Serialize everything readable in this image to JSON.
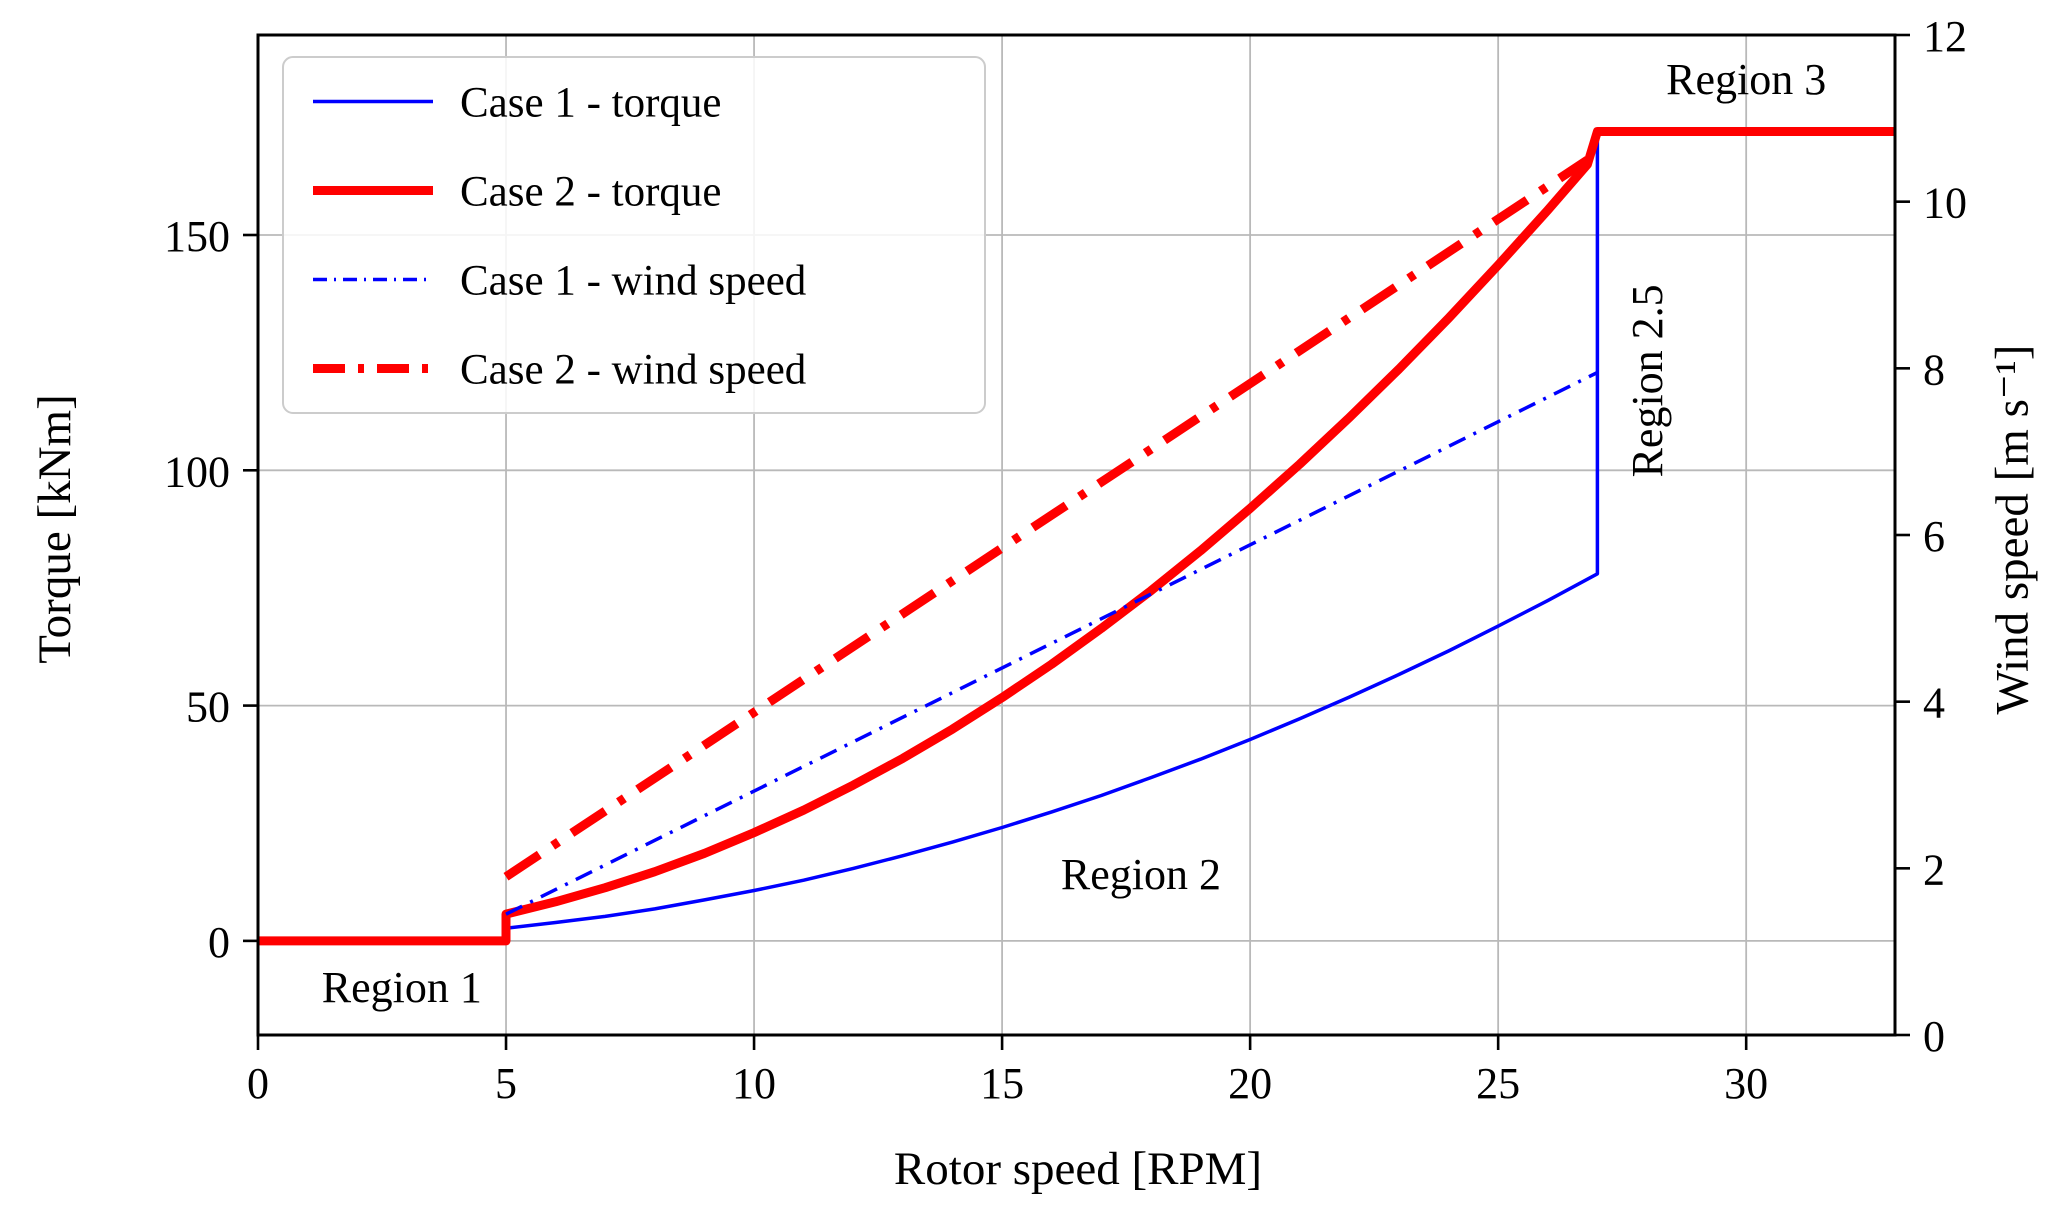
{
  "figure": {
    "background": "#ffffff"
  },
  "chart_data": {
    "type": "line",
    "title": "",
    "xlabel": "Rotor speed [RPM]",
    "ylabel_left": "Torque [kNm]",
    "ylabel_right": "Wind speed [m s⁻¹]",
    "xlim": [
      0,
      33
    ],
    "ylim_left": [
      -20,
      192.5
    ],
    "ylim_right": [
      0,
      12
    ],
    "xticks": [
      0,
      5,
      10,
      15,
      20,
      25,
      30
    ],
    "yticks_left": [
      0,
      50,
      100,
      150
    ],
    "yticks_right": [
      0,
      2,
      4,
      6,
      8,
      10,
      12
    ],
    "grid": true,
    "legend_position": "upper left",
    "colors": {
      "case1": "#0000ff",
      "case2": "#ff0000"
    },
    "series": [
      {
        "name": "Case 1 - torque",
        "axis": "left",
        "color": "#0000ff",
        "width": 3.5,
        "dash": null,
        "points": [
          [
            0,
            0
          ],
          [
            5,
            0
          ],
          [
            5,
            2.7
          ],
          [
            6,
            3.9
          ],
          [
            7,
            5.2
          ],
          [
            8,
            6.8
          ],
          [
            9,
            8.7
          ],
          [
            10,
            10.7
          ],
          [
            11,
            12.9
          ],
          [
            12,
            15.4
          ],
          [
            13,
            18.1
          ],
          [
            14,
            21.0
          ],
          [
            15,
            24.1
          ],
          [
            16,
            27.4
          ],
          [
            17,
            30.9
          ],
          [
            18,
            34.7
          ],
          [
            19,
            38.6
          ],
          [
            20,
            42.8
          ],
          [
            21,
            47.2
          ],
          [
            22,
            51.8
          ],
          [
            23,
            56.6
          ],
          [
            24,
            61.6
          ],
          [
            25,
            66.9
          ],
          [
            26,
            72.3
          ],
          [
            27,
            78.0
          ],
          [
            27,
            172
          ],
          [
            33,
            172
          ]
        ]
      },
      {
        "name": "Case 2 - torque",
        "axis": "left",
        "color": "#ff0000",
        "width": 9,
        "dash": null,
        "points": [
          [
            0,
            0
          ],
          [
            5,
            0
          ],
          [
            5,
            5.7
          ],
          [
            6,
            8.3
          ],
          [
            7,
            11.3
          ],
          [
            8,
            14.7
          ],
          [
            9,
            18.6
          ],
          [
            10,
            23.0
          ],
          [
            11,
            27.8
          ],
          [
            12,
            33.1
          ],
          [
            13,
            38.8
          ],
          [
            14,
            45.0
          ],
          [
            15,
            51.7
          ],
          [
            16,
            58.8
          ],
          [
            17,
            66.4
          ],
          [
            18,
            74.4
          ],
          [
            19,
            82.9
          ],
          [
            20,
            91.9
          ],
          [
            21,
            101.3
          ],
          [
            22,
            111.2
          ],
          [
            23,
            121.5
          ],
          [
            24,
            132.3
          ],
          [
            25,
            143.6
          ],
          [
            26,
            155.3
          ],
          [
            26.8,
            165.0
          ],
          [
            27,
            172
          ],
          [
            33,
            172
          ]
        ]
      },
      {
        "name": "Case 1 - wind speed",
        "axis": "right",
        "color": "#0000ff",
        "width": 3.5,
        "dash": [
          18,
          9,
          3,
          9
        ],
        "points": [
          [
            5,
            1.45
          ],
          [
            27,
            7.95
          ]
        ]
      },
      {
        "name": "Case 2 - wind speed",
        "axis": "right",
        "color": "#ff0000",
        "width": 9,
        "dash": [
          40,
          16,
          7,
          16
        ],
        "points": [
          [
            5,
            1.9
          ],
          [
            26.8,
            10.5
          ]
        ]
      }
    ],
    "annotations": [
      {
        "text": "Region 1",
        "x": 2.9,
        "y": -13,
        "rotate": 0
      },
      {
        "text": "Region 2",
        "x": 17.8,
        "y": 11,
        "rotate": 0
      },
      {
        "text": "Region 2.5",
        "x": 28.3,
        "y": 119,
        "rotate": -90
      },
      {
        "text": "Region 3",
        "x": 30.0,
        "y": 180,
        "rotate": 0
      }
    ]
  }
}
